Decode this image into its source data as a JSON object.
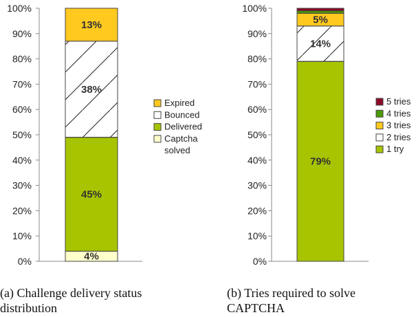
{
  "chart_data": [
    {
      "type": "bar",
      "stacked": true,
      "percent": true,
      "caption": [
        "(a) Challenge delivery status",
        "distribution"
      ],
      "yticks": [
        "0%",
        "10%",
        "20%",
        "30%",
        "40%",
        "50%",
        "60%",
        "70%",
        "80%",
        "90%",
        "100%"
      ],
      "ylim": [
        0,
        100
      ],
      "grid": false,
      "legend_position": "right",
      "legend_order": [
        "Expired",
        "Bounced",
        "Delivered",
        "Captcha solved"
      ],
      "segments": [
        {
          "name": "Captcha solved",
          "value": 4,
          "label": "4%",
          "color": "#ffffcc",
          "hatch": false
        },
        {
          "name": "Delivered",
          "value": 45,
          "label": "45%",
          "color": "#a8c400",
          "hatch": false
        },
        {
          "name": "Bounced",
          "value": 38,
          "label": "38%",
          "color": "#ffffff",
          "hatch": true
        },
        {
          "name": "Expired",
          "value": 13,
          "label": "13%",
          "color": "#ffc91f",
          "hatch": false
        }
      ]
    },
    {
      "type": "bar",
      "stacked": true,
      "percent": true,
      "caption": [
        "(b) Tries required to solve",
        "CAPTCHA"
      ],
      "yticks": [
        "0%",
        "10%",
        "20%",
        "30%",
        "40%",
        "50%",
        "60%",
        "70%",
        "80%",
        "90%",
        "100%"
      ],
      "ylim": [
        0,
        100
      ],
      "grid": false,
      "legend_position": "right",
      "legend_order": [
        "5 tries",
        "4 tries",
        "3 tries",
        "2 tries",
        "1 try"
      ],
      "segments": [
        {
          "name": "1 try",
          "value": 79,
          "label": "79%",
          "color": "#a8c400",
          "hatch": false
        },
        {
          "name": "2 tries",
          "value": 14,
          "label": "14%",
          "color": "#ffffff",
          "hatch": true
        },
        {
          "name": "3 tries",
          "value": 5,
          "label": "5%",
          "color": "#ffc91f",
          "hatch": false
        },
        {
          "name": "4 tries",
          "value": 1,
          "label": "",
          "color": "#4e9a06",
          "hatch": false
        },
        {
          "name": "5 tries",
          "value": 1,
          "label": "",
          "color": "#8b0a28",
          "hatch": false
        }
      ]
    }
  ]
}
